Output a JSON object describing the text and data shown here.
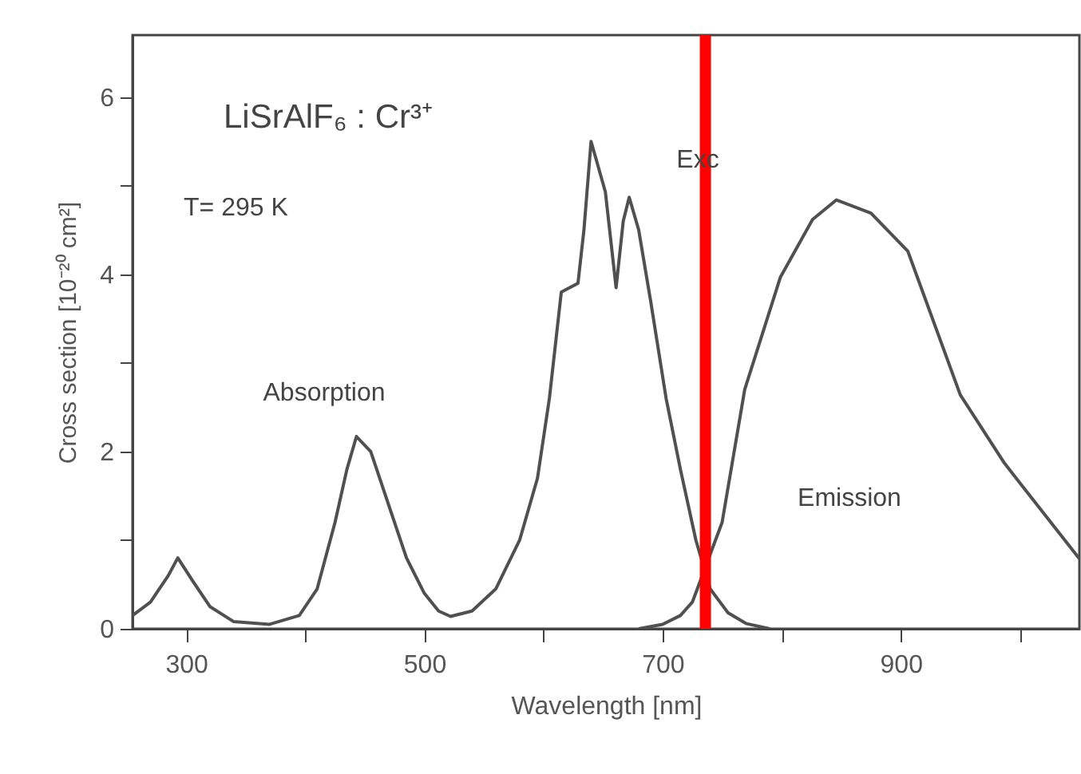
{
  "chart_data": {
    "type": "line",
    "xlabel": "Wavelength [nm]",
    "ylabel": "Cross section [10⁻²⁰ cm²]",
    "xlim": [
      255,
      1050
    ],
    "ylim": [
      0,
      6.7
    ],
    "xticks": [
      300,
      {
        "value": 400,
        "label": null
      },
      500,
      {
        "value": 600,
        "label": null
      },
      700,
      {
        "value": 800,
        "label": null
      },
      900,
      {
        "value": 1000,
        "label": null
      }
    ],
    "yticks": [
      0,
      {
        "value": 1,
        "label": null
      },
      2,
      {
        "value": 3,
        "label": null
      },
      4,
      {
        "value": 5,
        "label": null
      },
      6
    ],
    "grid": false,
    "marker": "none",
    "line_style": "solid",
    "series": [
      {
        "color": "#505050",
        "x": [
          255,
          270,
          285,
          293,
          305,
          320,
          340,
          370,
          395,
          410,
          425,
          435,
          443,
          455,
          470,
          485,
          500,
          512,
          522,
          540,
          560,
          580,
          595,
          605,
          615,
          629,
          634,
          640,
          652,
          661,
          667,
          672,
          680,
          690,
          703,
          715,
          728,
          740,
          755,
          770,
          790
        ],
        "values": [
          0.15,
          0.3,
          0.6,
          0.8,
          0.55,
          0.25,
          0.08,
          0.05,
          0.15,
          0.45,
          1.2,
          1.8,
          2.17,
          2.0,
          1.4,
          0.8,
          0.4,
          0.2,
          0.14,
          0.2,
          0.45,
          1.0,
          1.7,
          2.6,
          3.8,
          3.9,
          4.5,
          5.5,
          4.93,
          3.85,
          4.6,
          4.87,
          4.5,
          3.7,
          2.6,
          1.8,
          1.0,
          0.45,
          0.18,
          0.06,
          0
        ]
      },
      {
        "color": "#505050",
        "x": [
          680,
          700,
          715,
          725,
          750,
          769,
          799,
          826,
          846,
          875,
          906,
          950,
          987,
          1050
        ],
        "values": [
          0,
          0.05,
          0.15,
          0.3,
          1.2,
          2.7,
          3.97,
          4.62,
          4.84,
          4.69,
          4.26,
          2.64,
          1.87,
          0.79
        ]
      }
    ],
    "ref_lines": [
      {
        "axis": "x",
        "value": 736,
        "color": "#ff0000"
      }
    ],
    "annotations": [
      "LiSrAlF₆ : Cr³⁺",
      "T= 295 K",
      "Absorption",
      "Exc",
      "Emission"
    ]
  }
}
